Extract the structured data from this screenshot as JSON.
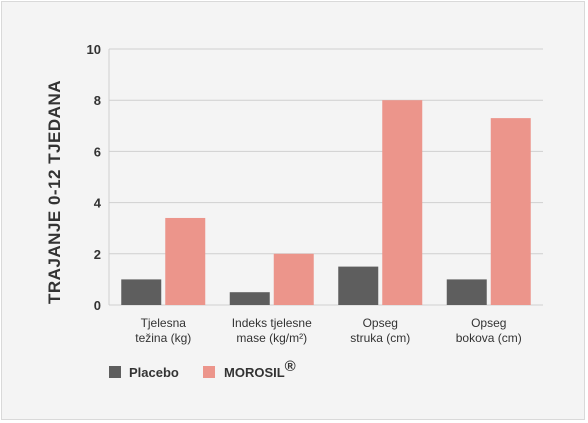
{
  "chart_data": {
    "type": "bar",
    "categories": [
      [
        "Tjelesna",
        "težina (kg)"
      ],
      [
        "Indeks tjelesne",
        "mase (kg/m²)"
      ],
      [
        "Opseg",
        "struka (cm)"
      ],
      [
        "Opseg",
        "bokova (cm)"
      ]
    ],
    "series": [
      {
        "name": "Placebo",
        "values": [
          1.0,
          0.5,
          1.5,
          1.0
        ],
        "color": "#5e5e5e"
      },
      {
        "name": "MOROSIL",
        "values": [
          3.4,
          2.0,
          8.0,
          7.3
        ],
        "color": "#ec958b"
      }
    ],
    "ylabel": "TRAJANJE 0-12 TJEDANA",
    "ylim": [
      0,
      10
    ],
    "yticks": [
      "0",
      "2",
      "4",
      "6",
      "8",
      "10"
    ],
    "grid": true,
    "legend": {
      "position": "bottom-left",
      "registered_mark": "®"
    }
  }
}
